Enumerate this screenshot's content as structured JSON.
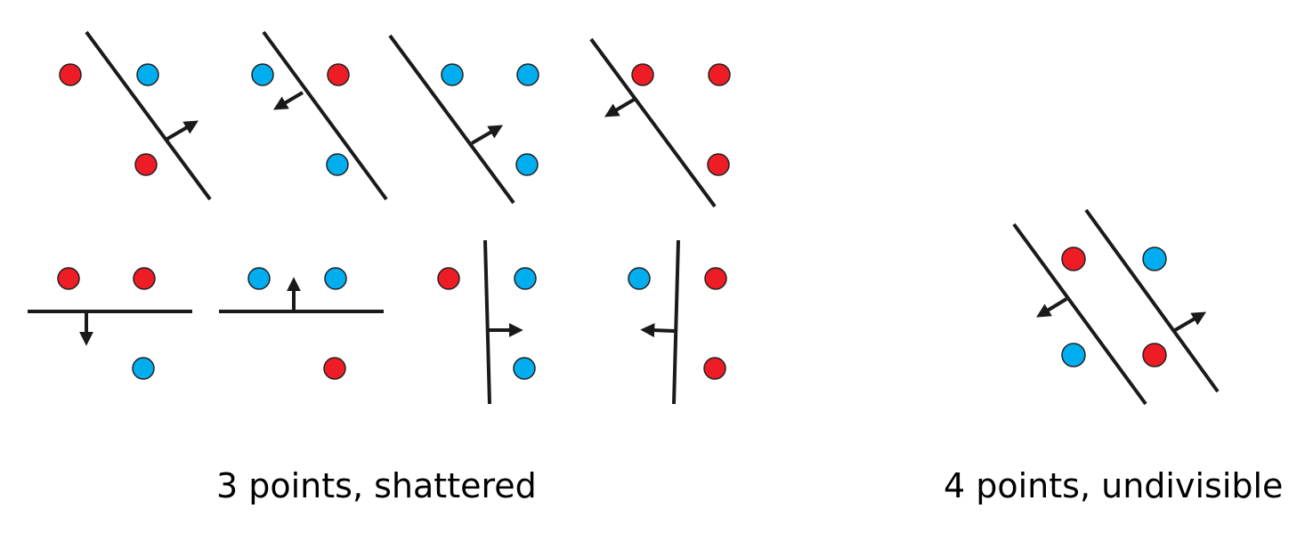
{
  "colors": {
    "red": "#ee1c25",
    "blue": "#00aeef",
    "stroke": "#1a1a1a"
  },
  "captions": {
    "shattered": "3 points, shattered",
    "undivisible": "4 points, undivisible"
  }
}
